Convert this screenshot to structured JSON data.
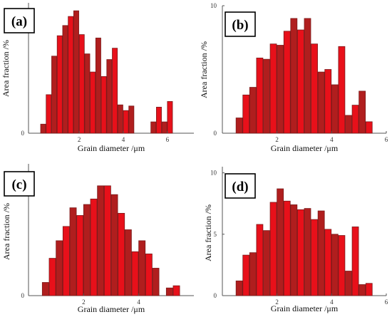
{
  "colors": {
    "bar_dark": "#b01e1e",
    "bar_bright": "#e8101a",
    "bar_edge": "#7a1a1a"
  },
  "chart_data": [
    {
      "type": "bar",
      "panel_label": "(a)",
      "xlabel": "Grain diameter /μm",
      "ylabel": "Area fraction /%",
      "x_tick_labels": [
        "2",
        "4",
        "6"
      ],
      "y_tick_labels": [
        "0",
        "10"
      ],
      "xlim": [
        -0.3,
        7.2
      ],
      "ylim": [
        0,
        11.5
      ],
      "bin_width": 0.25,
      "x": [
        0.25,
        0.5,
        0.75,
        1.0,
        1.25,
        1.5,
        1.75,
        2.0,
        2.25,
        2.5,
        2.75,
        3.0,
        3.25,
        3.5,
        3.75,
        4.0,
        4.25,
        4.5,
        4.75,
        5.0,
        5.25,
        5.5,
        5.75,
        6.0,
        6.25,
        6.5
      ],
      "values": [
        0.8,
        3.4,
        6.8,
        8.6,
        9.5,
        10.3,
        10.8,
        8.7,
        7.0,
        5.4,
        8.4,
        5.0,
        6.5,
        7.5,
        2.5,
        2.0,
        2.4,
        0,
        0,
        0,
        1.0,
        2.3,
        1.0,
        2.8,
        0,
        0
      ]
    },
    {
      "type": "bar",
      "panel_label": "(b)",
      "xlabel": "Grain diameter /μm",
      "ylabel": "Area fraction /%",
      "x_tick_labels": [
        "2",
        "4",
        "6"
      ],
      "y_tick_labels": [
        "0",
        "10"
      ],
      "xlim": [
        0,
        6
      ],
      "ylim": [
        0,
        10
      ],
      "bin_width": 0.25,
      "x": [
        0.5,
        0.75,
        1.0,
        1.25,
        1.5,
        1.75,
        2.0,
        2.25,
        2.5,
        2.75,
        3.0,
        3.25,
        3.5,
        3.75,
        4.0,
        4.25,
        4.5,
        4.75,
        5.0,
        5.25
      ],
      "values": [
        1.2,
        3.0,
        3.6,
        5.9,
        5.8,
        7.0,
        6.9,
        8.0,
        9.0,
        8.1,
        9.0,
        7.0,
        4.8,
        5.0,
        3.8,
        6.8,
        1.4,
        2.2,
        3.3,
        0.9
      ]
    },
    {
      "type": "bar",
      "panel_label": "(c)",
      "xlabel": "Grain diameter /μm",
      "ylabel": "Area fraction /%",
      "x_tick_labels": [
        "2",
        "4"
      ],
      "y_tick_labels": [
        "0",
        "10"
      ],
      "xlim": [
        0,
        6
      ],
      "ylim": [
        0,
        12
      ],
      "bin_width": 0.25,
      "x": [
        0.5,
        0.75,
        1.0,
        1.25,
        1.5,
        1.75,
        2.0,
        2.25,
        2.5,
        2.75,
        3.0,
        3.25,
        3.5,
        3.75,
        4.0,
        4.25,
        4.5,
        4.75,
        5.0,
        5.25
      ],
      "values": [
        1.2,
        3.4,
        5.0,
        6.3,
        8.0,
        7.3,
        8.3,
        8.8,
        10.0,
        10.0,
        9.2,
        7.5,
        6.0,
        4.0,
        5.0,
        3.8,
        2.5,
        0,
        0.7,
        0.9
      ]
    },
    {
      "type": "bar",
      "panel_label": "(d)",
      "xlabel": "Grain diameter /μm",
      "ylabel": "Area fraction /%",
      "x_tick_labels": [
        "2",
        "4",
        "6"
      ],
      "y_tick_labels": [
        "0",
        "5",
        "10"
      ],
      "xlim": [
        0,
        6
      ],
      "ylim": [
        0,
        10.5
      ],
      "bin_width": 0.25,
      "x": [
        0.5,
        0.75,
        1.0,
        1.25,
        1.5,
        1.75,
        2.0,
        2.25,
        2.5,
        2.75,
        3.0,
        3.25,
        3.5,
        3.75,
        4.0,
        4.25,
        4.5,
        4.75,
        5.0,
        5.25
      ],
      "values": [
        1.2,
        3.3,
        3.5,
        5.8,
        5.3,
        7.6,
        8.7,
        7.7,
        7.4,
        7.0,
        7.1,
        6.2,
        6.9,
        5.4,
        5.0,
        4.9,
        2.0,
        5.6,
        0.9,
        1.0
      ]
    }
  ]
}
